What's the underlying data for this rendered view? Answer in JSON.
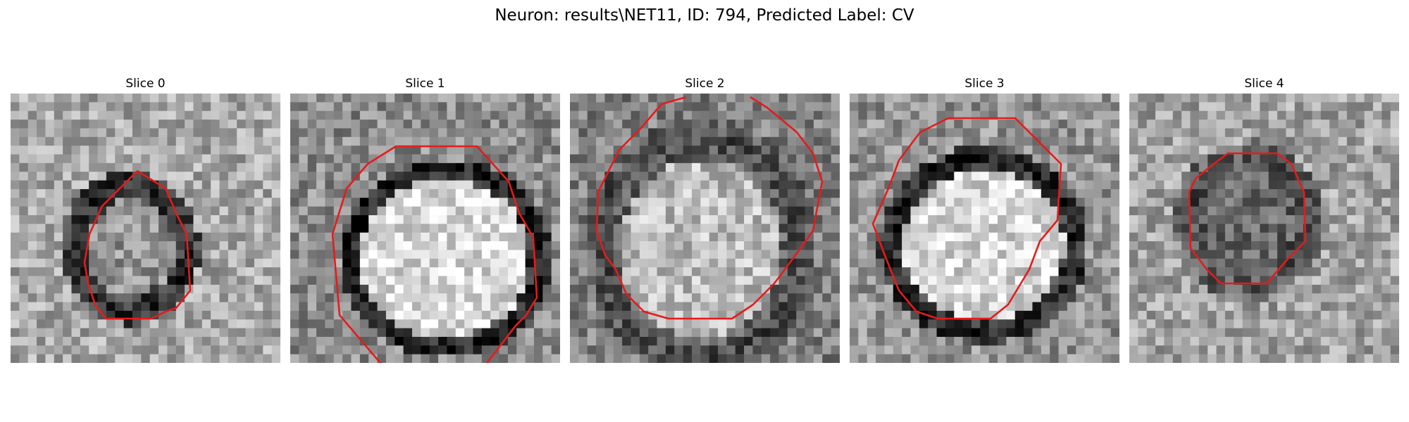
{
  "figure": {
    "title": "Neuron: results\\NET11, ID: 794, Predicted Label: CV"
  },
  "colors": {
    "contour": "#e61b1b",
    "background": "#ffffff"
  },
  "slices": [
    {
      "label": "Slice 0",
      "tone": {
        "ring": 0.16,
        "bg": 0.66,
        "inner": 0.58
      }
    },
    {
      "label": "Slice 1",
      "tone": {
        "ring": 0.08,
        "bg": 0.55,
        "inner": 0.86
      }
    },
    {
      "label": "Slice 2",
      "tone": {
        "ring": 0.28,
        "bg": 0.5,
        "inner": 0.74
      }
    },
    {
      "label": "Slice 3",
      "tone": {
        "ring": 0.12,
        "bg": 0.58,
        "inner": 0.84
      }
    },
    {
      "label": "Slice 4",
      "tone": {
        "ring": 0.3,
        "bg": 0.64,
        "inner": 0.42
      }
    }
  ]
}
